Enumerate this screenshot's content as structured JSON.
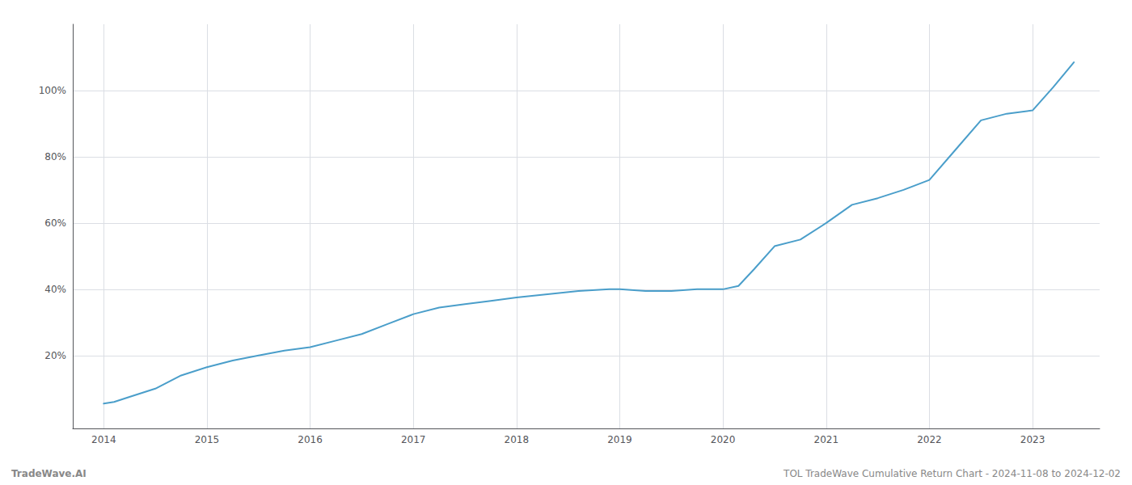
{
  "chart_data": {
    "type": "line",
    "annotations": [
      "TradeWave.AI",
      "TOL TradeWave Cumulative Return Chart - 2024-11-08 to 2024-12-02"
    ],
    "x": [
      2014.0,
      2014.1,
      2014.25,
      2014.5,
      2014.75,
      2015.0,
      2015.25,
      2015.5,
      2015.75,
      2016.0,
      2016.25,
      2016.5,
      2016.75,
      2017.0,
      2017.25,
      2017.5,
      2017.75,
      2018.0,
      2018.15,
      2018.3,
      2018.6,
      2018.9,
      2019.0,
      2019.25,
      2019.5,
      2019.75,
      2020.0,
      2020.15,
      2020.3,
      2020.5,
      2020.75,
      2021.0,
      2021.25,
      2021.5,
      2021.75,
      2022.0,
      2022.25,
      2022.5,
      2022.75,
      2023.0,
      2023.2,
      2023.4
    ],
    "values": [
      5.5,
      6.0,
      7.5,
      10.0,
      14.0,
      16.5,
      18.5,
      20.0,
      21.5,
      22.5,
      24.5,
      26.5,
      29.5,
      32.5,
      34.5,
      35.5,
      36.5,
      37.5,
      38.0,
      38.5,
      39.5,
      40.0,
      40.0,
      39.5,
      39.5,
      40.0,
      40.0,
      41.0,
      46.0,
      53.0,
      55.0,
      60.0,
      65.5,
      67.5,
      70.0,
      73.0,
      82.0,
      91.0,
      93.0,
      94.0,
      101.0,
      108.5
    ],
    "color": "#4a9eca",
    "xlim": [
      2013.7,
      2023.65
    ],
    "xticks": [
      2014,
      2015,
      2016,
      2017,
      2018,
      2019,
      2020,
      2021,
      2022,
      2023
    ],
    "ylim": [
      -2,
      120
    ],
    "yticks": [
      {
        "value": 20,
        "label": "20%"
      },
      {
        "value": 40,
        "label": "40%"
      },
      {
        "value": 60,
        "label": "60%"
      },
      {
        "value": 80,
        "label": "80%"
      },
      {
        "value": 100,
        "label": "100%"
      }
    ],
    "grid": true
  }
}
